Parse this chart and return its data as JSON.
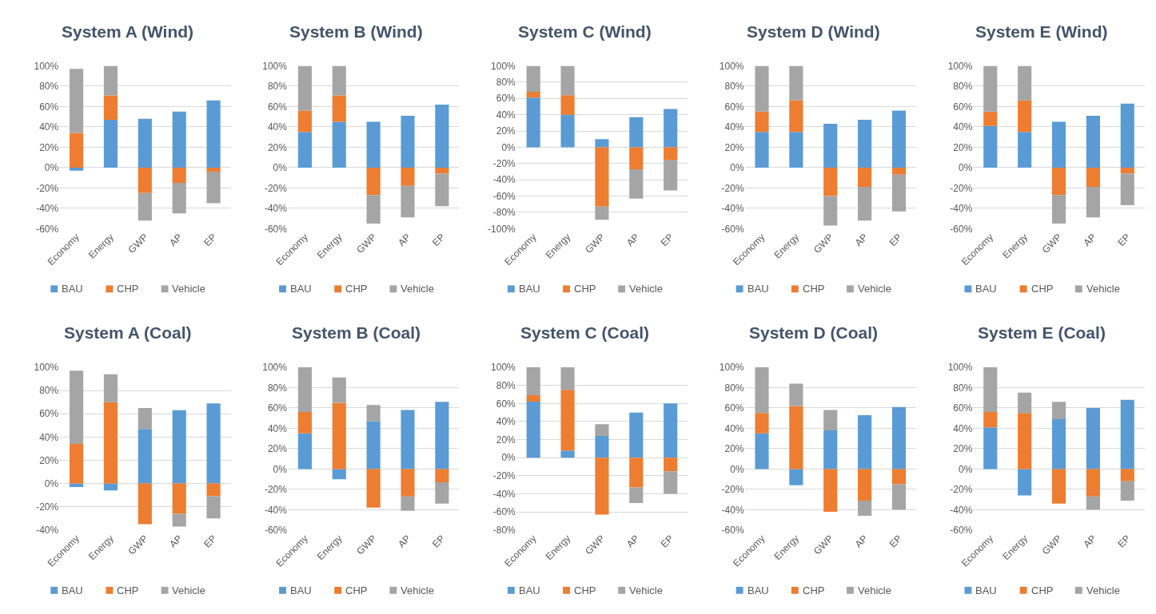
{
  "chart_data": [
    {
      "type": "bar",
      "title": "System A (Wind)",
      "categories": [
        "Economy",
        "Energy",
        "GWP",
        "AP",
        "EP"
      ],
      "stacked": true,
      "grid": "y",
      "legend": "bottom",
      "ylim": [
        -60,
        100
      ],
      "yticks": [
        {
          "value": -60,
          "label": "-60%"
        },
        {
          "value": -40,
          "label": "-40%"
        },
        {
          "value": -20,
          "label": "-20%"
        },
        {
          "value": 0,
          "label": "0%"
        },
        {
          "value": 20,
          "label": "20%"
        },
        {
          "value": 40,
          "label": "40%"
        },
        {
          "value": 60,
          "label": "60%"
        },
        {
          "value": 80,
          "label": "80%"
        },
        {
          "value": 100,
          "label": "100%"
        }
      ],
      "series": [
        {
          "name": "BAU",
          "color": "#5b9bd5",
          "values": [
            -3,
            47,
            48,
            55,
            66
          ]
        },
        {
          "name": "CHP",
          "color": "#ed7d31",
          "values": [
            34,
            24,
            -25,
            -15,
            -4
          ]
        },
        {
          "name": "Vehicle",
          "color": "#a5a5a5",
          "values": [
            63,
            29,
            -27,
            -30,
            -31
          ]
        }
      ]
    },
    {
      "type": "bar",
      "title": "System B (Wind)",
      "categories": [
        "Economy",
        "Energy",
        "GWP",
        "AP",
        "EP"
      ],
      "stacked": true,
      "grid": "y",
      "legend": "bottom",
      "ylim": [
        -60,
        100
      ],
      "yticks": [
        {
          "value": -60,
          "label": "-60%"
        },
        {
          "value": -40,
          "label": "-40%"
        },
        {
          "value": -20,
          "label": "-20%"
        },
        {
          "value": 0,
          "label": "0%"
        },
        {
          "value": 20,
          "label": "20%"
        },
        {
          "value": 40,
          "label": "40%"
        },
        {
          "value": 60,
          "label": "60%"
        },
        {
          "value": 80,
          "label": "80%"
        },
        {
          "value": 100,
          "label": "100%"
        }
      ],
      "series": [
        {
          "name": "BAU",
          "color": "#5b9bd5",
          "values": [
            35,
            45,
            45,
            51,
            62
          ]
        },
        {
          "name": "CHP",
          "color": "#ed7d31",
          "values": [
            21,
            26,
            -27,
            -18,
            -6
          ]
        },
        {
          "name": "Vehicle",
          "color": "#a5a5a5",
          "values": [
            44,
            29,
            -28,
            -31,
            -32
          ]
        }
      ]
    },
    {
      "type": "bar",
      "title": "System C (Wind)",
      "categories": [
        "Economy",
        "Energy",
        "GWP",
        "AP",
        "EP"
      ],
      "stacked": true,
      "grid": "y",
      "legend": "bottom",
      "ylim": [
        -100,
        100
      ],
      "yticks": [
        {
          "value": -100,
          "label": "-100%"
        },
        {
          "value": -80,
          "label": "-80%"
        },
        {
          "value": -60,
          "label": "-60%"
        },
        {
          "value": -40,
          "label": "-40%"
        },
        {
          "value": -20,
          "label": "-20%"
        },
        {
          "value": 0,
          "label": "0%"
        },
        {
          "value": 20,
          "label": "20%"
        },
        {
          "value": 40,
          "label": "40%"
        },
        {
          "value": 60,
          "label": "60%"
        },
        {
          "value": 80,
          "label": "80%"
        },
        {
          "value": 100,
          "label": "100%"
        }
      ],
      "series": [
        {
          "name": "BAU",
          "color": "#5b9bd5",
          "values": [
            61,
            40,
            10,
            37,
            47
          ]
        },
        {
          "name": "CHP",
          "color": "#ed7d31",
          "values": [
            7,
            24,
            -73,
            -27,
            -16
          ]
        },
        {
          "name": "Vehicle",
          "color": "#a5a5a5",
          "values": [
            32,
            36,
            -16,
            -36,
            -37
          ]
        }
      ]
    },
    {
      "type": "bar",
      "title": "System D (Wind)",
      "categories": [
        "Economy",
        "Energy",
        "GWP",
        "AP",
        "EP"
      ],
      "stacked": true,
      "grid": "y",
      "legend": "bottom",
      "ylim": [
        -60,
        100
      ],
      "yticks": [
        {
          "value": -60,
          "label": "-60%"
        },
        {
          "value": -40,
          "label": "-40%"
        },
        {
          "value": -20,
          "label": "-20%"
        },
        {
          "value": 0,
          "label": "0%"
        },
        {
          "value": 20,
          "label": "20%"
        },
        {
          "value": 40,
          "label": "40%"
        },
        {
          "value": 60,
          "label": "60%"
        },
        {
          "value": 80,
          "label": "80%"
        },
        {
          "value": 100,
          "label": "100%"
        }
      ],
      "series": [
        {
          "name": "BAU",
          "color": "#5b9bd5",
          "values": [
            35,
            35,
            43,
            47,
            56
          ]
        },
        {
          "name": "CHP",
          "color": "#ed7d31",
          "values": [
            20,
            31,
            -28,
            -19,
            -7
          ]
        },
        {
          "name": "Vehicle",
          "color": "#a5a5a5",
          "values": [
            45,
            34,
            -29,
            -33,
            -36
          ]
        }
      ]
    },
    {
      "type": "bar",
      "title": "System E (Wind)",
      "categories": [
        "Economy",
        "Energy",
        "GWP",
        "AP",
        "EP"
      ],
      "stacked": true,
      "grid": "y",
      "legend": "bottom",
      "ylim": [
        -60,
        100
      ],
      "yticks": [
        {
          "value": -60,
          "label": "-60%"
        },
        {
          "value": -40,
          "label": "-40%"
        },
        {
          "value": -20,
          "label": "-20%"
        },
        {
          "value": 0,
          "label": "0%"
        },
        {
          "value": 20,
          "label": "20%"
        },
        {
          "value": 40,
          "label": "40%"
        },
        {
          "value": 60,
          "label": "60%"
        },
        {
          "value": 80,
          "label": "80%"
        },
        {
          "value": 100,
          "label": "100%"
        }
      ],
      "series": [
        {
          "name": "BAU",
          "color": "#5b9bd5",
          "values": [
            41,
            35,
            45,
            51,
            63
          ]
        },
        {
          "name": "CHP",
          "color": "#ed7d31",
          "values": [
            14,
            31,
            -27,
            -19,
            -6
          ]
        },
        {
          "name": "Vehicle",
          "color": "#a5a5a5",
          "values": [
            45,
            34,
            -28,
            -30,
            -31
          ]
        }
      ]
    },
    {
      "type": "bar",
      "title": "System A (Coal)",
      "categories": [
        "Economy",
        "Energy",
        "GWP",
        "AP",
        "EP"
      ],
      "stacked": true,
      "grid": "y",
      "legend": "bottom",
      "ylim": [
        -40,
        100
      ],
      "yticks": [
        {
          "value": -40,
          "label": "-40%"
        },
        {
          "value": -20,
          "label": "-20%"
        },
        {
          "value": 0,
          "label": "0%"
        },
        {
          "value": 20,
          "label": "20%"
        },
        {
          "value": 40,
          "label": "40%"
        },
        {
          "value": 60,
          "label": "60%"
        },
        {
          "value": 80,
          "label": "80%"
        },
        {
          "value": 100,
          "label": "100%"
        }
      ],
      "series": [
        {
          "name": "BAU",
          "color": "#5b9bd5",
          "values": [
            -3,
            -6,
            47,
            63,
            69
          ]
        },
        {
          "name": "CHP",
          "color": "#ed7d31",
          "values": [
            34,
            70,
            -35,
            -26,
            -11
          ]
        },
        {
          "name": "Vehicle",
          "color": "#a5a5a5",
          "values": [
            63,
            24,
            18,
            -11,
            -19
          ]
        }
      ]
    },
    {
      "type": "bar",
      "title": "System B (Coal)",
      "categories": [
        "Economy",
        "Energy",
        "GWP",
        "AP",
        "EP"
      ],
      "stacked": true,
      "grid": "y",
      "legend": "bottom",
      "ylim": [
        -60,
        100
      ],
      "yticks": [
        {
          "value": -60,
          "label": "-60%"
        },
        {
          "value": -40,
          "label": "-40%"
        },
        {
          "value": -20,
          "label": "-20%"
        },
        {
          "value": 0,
          "label": "0%"
        },
        {
          "value": 20,
          "label": "20%"
        },
        {
          "value": 40,
          "label": "40%"
        },
        {
          "value": 60,
          "label": "60%"
        },
        {
          "value": 80,
          "label": "80%"
        },
        {
          "value": 100,
          "label": "100%"
        }
      ],
      "series": [
        {
          "name": "BAU",
          "color": "#5b9bd5",
          "values": [
            35,
            -10,
            47,
            58,
            66
          ]
        },
        {
          "name": "CHP",
          "color": "#ed7d31",
          "values": [
            21,
            65,
            -38,
            -27,
            -13
          ]
        },
        {
          "name": "Vehicle",
          "color": "#a5a5a5",
          "values": [
            44,
            25,
            16,
            -14,
            -21
          ]
        }
      ]
    },
    {
      "type": "bar",
      "title": "System C (Coal)",
      "categories": [
        "Economy",
        "Energy",
        "GWP",
        "AP",
        "EP"
      ],
      "stacked": true,
      "grid": "y",
      "legend": "bottom",
      "ylim": [
        -80,
        100
      ],
      "yticks": [
        {
          "value": -80,
          "label": "-80%"
        },
        {
          "value": -60,
          "label": "-60%"
        },
        {
          "value": -40,
          "label": "-40%"
        },
        {
          "value": -20,
          "label": "-20%"
        },
        {
          "value": 0,
          "label": "0%"
        },
        {
          "value": 20,
          "label": "20%"
        },
        {
          "value": 40,
          "label": "40%"
        },
        {
          "value": 60,
          "label": "60%"
        },
        {
          "value": 80,
          "label": "80%"
        },
        {
          "value": 100,
          "label": "100%"
        }
      ],
      "series": [
        {
          "name": "BAU",
          "color": "#5b9bd5",
          "values": [
            62,
            8,
            24,
            50,
            60
          ]
        },
        {
          "name": "CHP",
          "color": "#ed7d31",
          "values": [
            7,
            67,
            -63,
            -33,
            -15
          ]
        },
        {
          "name": "Vehicle",
          "color": "#a5a5a5",
          "values": [
            31,
            25,
            13,
            -17,
            -25
          ]
        }
      ]
    },
    {
      "type": "bar",
      "title": "System D (Coal)",
      "categories": [
        "Economy",
        "Energy",
        "GWP",
        "AP",
        "EP"
      ],
      "stacked": true,
      "grid": "y",
      "legend": "bottom",
      "ylim": [
        -60,
        100
      ],
      "yticks": [
        {
          "value": -60,
          "label": "-60%"
        },
        {
          "value": -40,
          "label": "-40%"
        },
        {
          "value": -20,
          "label": "-20%"
        },
        {
          "value": 0,
          "label": "0%"
        },
        {
          "value": 20,
          "label": "20%"
        },
        {
          "value": 40,
          "label": "40%"
        },
        {
          "value": 60,
          "label": "60%"
        },
        {
          "value": 80,
          "label": "80%"
        },
        {
          "value": 100,
          "label": "100%"
        }
      ],
      "series": [
        {
          "name": "BAU",
          "color": "#5b9bd5",
          "values": [
            35,
            -16,
            38,
            53,
            61
          ]
        },
        {
          "name": "CHP",
          "color": "#ed7d31",
          "values": [
            20,
            62,
            -42,
            -31,
            -15
          ]
        },
        {
          "name": "Vehicle",
          "color": "#a5a5a5",
          "values": [
            45,
            22,
            20,
            -15,
            -25
          ]
        }
      ]
    },
    {
      "type": "bar",
      "title": "System E (Coal)",
      "categories": [
        "Economy",
        "Energy",
        "GWP",
        "AP",
        "EP"
      ],
      "stacked": true,
      "grid": "y",
      "legend": "bottom",
      "ylim": [
        -60,
        100
      ],
      "yticks": [
        {
          "value": -60,
          "label": "-60%"
        },
        {
          "value": -40,
          "label": "-40%"
        },
        {
          "value": -20,
          "label": "-20%"
        },
        {
          "value": 0,
          "label": "0%"
        },
        {
          "value": 20,
          "label": "20%"
        },
        {
          "value": 40,
          "label": "40%"
        },
        {
          "value": 60,
          "label": "60%"
        },
        {
          "value": 80,
          "label": "80%"
        },
        {
          "value": 100,
          "label": "100%"
        }
      ],
      "series": [
        {
          "name": "BAU",
          "color": "#5b9bd5",
          "values": [
            41,
            -26,
            49,
            60,
            68
          ]
        },
        {
          "name": "CHP",
          "color": "#ed7d31",
          "values": [
            15,
            55,
            -34,
            -27,
            -12
          ]
        },
        {
          "name": "Vehicle",
          "color": "#a5a5a5",
          "values": [
            44,
            20,
            17,
            -13,
            -19
          ]
        }
      ]
    }
  ]
}
